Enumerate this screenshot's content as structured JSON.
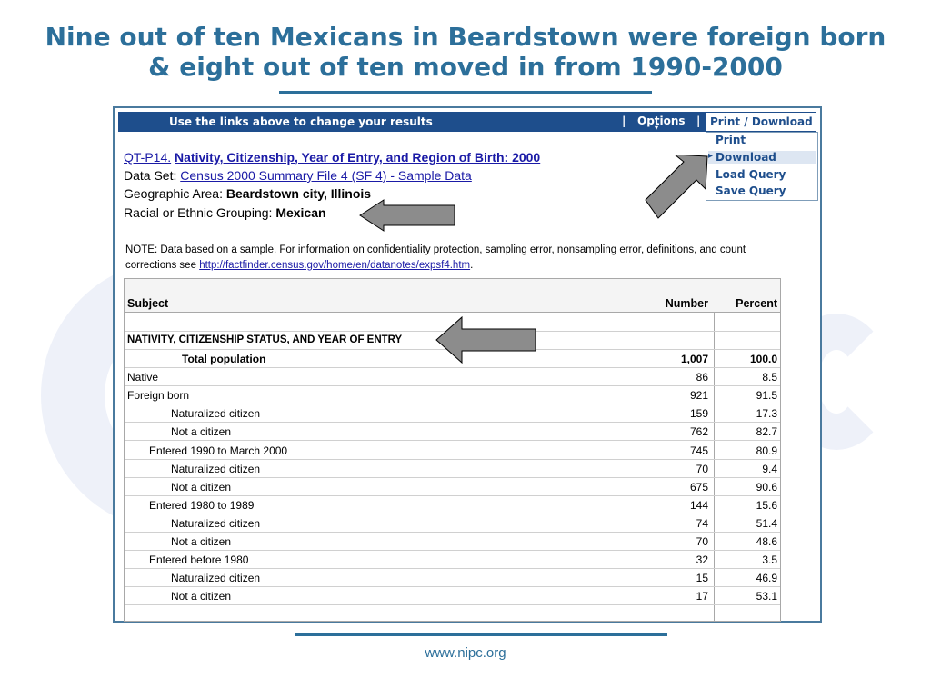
{
  "slide": {
    "title": "Nine out of ten Mexicans in Beardstown were foreign born & eight out of ten moved in from 1990-2000",
    "footer": "www.nipc.org"
  },
  "topbar": {
    "hint": "Use the links above to change your results",
    "sep": "|",
    "options": "Options",
    "options_arrow": "▾"
  },
  "menu": {
    "label": "Print / Download",
    "items": [
      "Print",
      "Download",
      "Load Query",
      "Save Query"
    ],
    "selected": "Download"
  },
  "query": {
    "table_id": "QT-P14.",
    "table_title": "Nativity, Citizenship, Year of Entry, and Region of Birth:  2000",
    "dataset_label": "Data Set:",
    "dataset_value": "Census 2000 Summary File 4 (SF 4) - Sample Data",
    "geo_label": "Geographic Area:",
    "geo_value": "Beardstown city, Illinois",
    "race_label": "Racial or Ethnic Grouping:",
    "race_value": "Mexican"
  },
  "note": {
    "text": "NOTE: Data based on a sample. For information on confidentiality protection, sampling error, nonsampling error, definitions, and count corrections see",
    "link": "http://factfinder.census.gov/home/en/datanotes/expsf4.htm",
    "end": "."
  },
  "table": {
    "headers": {
      "subject": "Subject",
      "number": "Number",
      "percent": "Percent"
    },
    "section": "NATIVITY, CITIZENSHIP STATUS, AND YEAR OF ENTRY",
    "rows": [
      {
        "label": "Total population",
        "number": "1,007",
        "percent": "100.0"
      },
      {
        "label": "Native",
        "number": "86",
        "percent": "8.5"
      },
      {
        "label": "Foreign born",
        "number": "921",
        "percent": "91.5"
      },
      {
        "label": "Naturalized citizen",
        "number": "159",
        "percent": "17.3"
      },
      {
        "label": "Not a citizen",
        "number": "762",
        "percent": "82.7"
      },
      {
        "label": "Entered 1990 to March 2000",
        "number": "745",
        "percent": "80.9"
      },
      {
        "label": "Naturalized citizen",
        "number": "70",
        "percent": "9.4"
      },
      {
        "label": "Not a citizen",
        "number": "675",
        "percent": "90.6"
      },
      {
        "label": "Entered 1980 to 1989",
        "number": "144",
        "percent": "15.6"
      },
      {
        "label": "Naturalized citizen",
        "number": "74",
        "percent": "51.4"
      },
      {
        "label": "Not a citizen",
        "number": "70",
        "percent": "48.6"
      },
      {
        "label": "Entered before 1980",
        "number": "32",
        "percent": "3.5"
      },
      {
        "label": "Naturalized citizen",
        "number": "15",
        "percent": "46.9"
      },
      {
        "label": "Not a citizen",
        "number": "17",
        "percent": "53.1"
      }
    ]
  },
  "colors": {
    "title": "#2c6f9a",
    "bar": "#1e4e8c",
    "arrow_fill": "#8c8c8c",
    "link": "#1a1aa6"
  }
}
